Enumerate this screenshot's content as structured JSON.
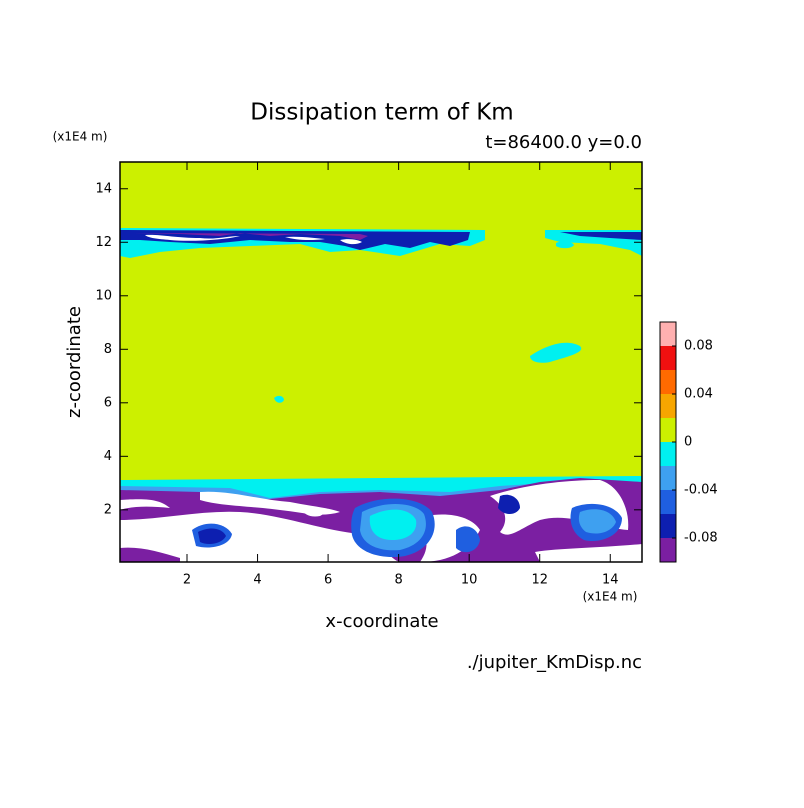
{
  "chart_data": {
    "type": "contour",
    "title": "Dissipation term of Km",
    "subtitle": "t=86400.0 y=0.0",
    "x_label": "x-coordinate",
    "y_label": "z-coordinate",
    "x_unit": "(x1E4 m)",
    "y_unit": "(x1E4 m)",
    "source": "./jupiter_KmDisp.nc",
    "xlim": [
      0.1,
      14.9
    ],
    "ylim": [
      0.05,
      15
    ],
    "xticks": [
      2,
      4,
      6,
      8,
      10,
      12,
      14
    ],
    "yticks": [
      2,
      4,
      6,
      8,
      10,
      12,
      14
    ],
    "levels": [
      -0.1,
      -0.08,
      -0.06,
      -0.04,
      -0.02,
      0,
      0.02,
      0.04,
      0.06,
      0.08,
      0.1
    ],
    "colors": [
      "#7b1fa2",
      "#0d1fb0",
      "#1f5fe0",
      "#3ea0f0",
      "#00f0f0",
      "#ccf000",
      "#f7a600",
      "#ff6a00",
      "#f01010",
      "#ffb0b0"
    ],
    "colorbar_ticks": [
      0.08,
      0.04,
      0,
      -0.04,
      -0.08
    ]
  }
}
